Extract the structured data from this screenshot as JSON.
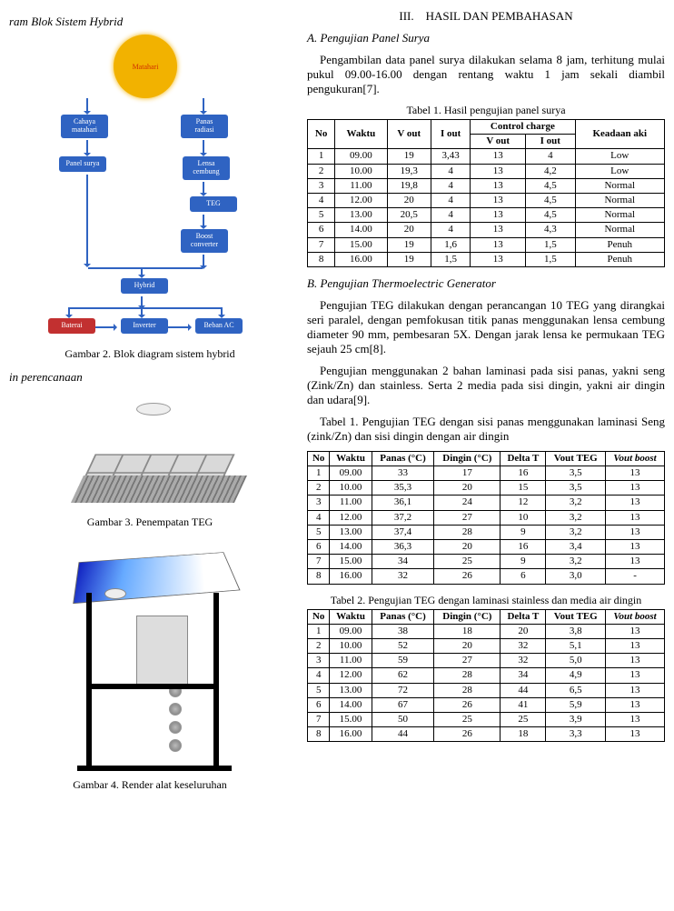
{
  "left": {
    "heading_blok": "ram Blok Sistem Hybrid",
    "fig2_caption": "Gambar 2.  Blok diagram sistem hybrid",
    "desain_heading": "in perencanaan",
    "fig3_caption": "Gambar 3. Penempatan TEG",
    "fig4_caption": "Gambar 4.  Render alat keseluruhan",
    "diagram": {
      "sun": "Matahari",
      "cahaya": "Cahaya\nmatahari",
      "panas": "Panas\nradiasi",
      "panel": "Panel surya",
      "lensa": "Lensa\ncembung",
      "teg": "TEG",
      "boost": "Boost\nconverter",
      "hybrid": "Hybrid",
      "baterai": "Baterai",
      "inverter": "Inverter",
      "beban": "Beban AC"
    }
  },
  "right": {
    "section_num": "III.",
    "section_title": "HASIL DAN PEMBAHASAN",
    "subA": "A.  Pengujian Panel Surya",
    "paraA": "Pengambilan data panel surya dilakukan selama 8 jam, terhitung mulai pukul 09.00-16.00 dengan rentang waktu 1 jam sekali diambil pengukuran[7].",
    "t1_caption": "Tabel 1. Hasil pengujian panel surya",
    "t1_headers": {
      "no": "No",
      "waktu": "Waktu",
      "vout": "V out",
      "iout": "I out",
      "cc": "Control charge",
      "cc_v": "V out",
      "cc_i": "I out",
      "keadaan": "Keadaan aki"
    },
    "t1_rows": [
      [
        "1",
        "09.00",
        "19",
        "3,43",
        "13",
        "4",
        "Low"
      ],
      [
        "2",
        "10.00",
        "19,3",
        "4",
        "13",
        "4,2",
        "Low"
      ],
      [
        "3",
        "11.00",
        "19,8",
        "4",
        "13",
        "4,5",
        "Normal"
      ],
      [
        "4",
        "12.00",
        "20",
        "4",
        "13",
        "4,5",
        "Normal"
      ],
      [
        "5",
        "13.00",
        "20,5",
        "4",
        "13",
        "4,5",
        "Normal"
      ],
      [
        "6",
        "14.00",
        "20",
        "4",
        "13",
        "4,3",
        "Normal"
      ],
      [
        "7",
        "15.00",
        "19",
        "1,6",
        "13",
        "1,5",
        "Penuh"
      ],
      [
        "8",
        "16.00",
        "19",
        "1,5",
        "13",
        "1,5",
        "Penuh"
      ]
    ],
    "subB": "B.  Pengujian Thermoelectric Generator",
    "paraB1": "Pengujian TEG dilakukan dengan perancangan 10 TEG yang dirangkai seri paralel, dengan pemfokusan titik panas menggunakan lensa cembung diameter 90 mm, pembesaran 5X. Dengan jarak lensa ke permukaan TEG sejauh 25 cm[8].",
    "paraB2": "Pengujian menggunakan 2 bahan laminasi pada sisi panas, yakni seng (Zink/Zn) dan stainless. Serta 2 media pada sisi dingin, yakni air dingin dan udara[9].",
    "t2_caption": "Tabel 1.  Pengujian TEG dengan sisi panas menggunakan laminasi Seng (zink/Zn) dan sisi dingin dengan air dingin",
    "teg_headers": {
      "no": "No",
      "waktu": "Waktu",
      "panas": "Panas (°C)",
      "dingin": "Dingin (°C)",
      "delta": "Delta T",
      "vteg": "Vout TEG",
      "vboost": "Vout boost"
    },
    "t2_rows": [
      [
        "1",
        "09.00",
        "33",
        "17",
        "16",
        "3,5",
        "13"
      ],
      [
        "2",
        "10.00",
        "35,3",
        "20",
        "15",
        "3,5",
        "13"
      ],
      [
        "3",
        "11.00",
        "36,1",
        "24",
        "12",
        "3,2",
        "13"
      ],
      [
        "4",
        "12.00",
        "37,2",
        "27",
        "10",
        "3,2",
        "13"
      ],
      [
        "5",
        "13.00",
        "37,4",
        "28",
        "9",
        "3,2",
        "13"
      ],
      [
        "6",
        "14.00",
        "36,3",
        "20",
        "16",
        "3,4",
        "13"
      ],
      [
        "7",
        "15.00",
        "34",
        "25",
        "9",
        "3,2",
        "13"
      ],
      [
        "8",
        "16.00",
        "32",
        "26",
        "6",
        "3,0",
        "-"
      ]
    ],
    "t3_caption": "Tabel 2. Pengujian TEG dengan laminasi stainless dan media air dingin",
    "t3_rows": [
      [
        "1",
        "09.00",
        "38",
        "18",
        "20",
        "3,8",
        "13"
      ],
      [
        "2",
        "10.00",
        "52",
        "20",
        "32",
        "5,1",
        "13"
      ],
      [
        "3",
        "11.00",
        "59",
        "27",
        "32",
        "5,0",
        "13"
      ],
      [
        "4",
        "12.00",
        "62",
        "28",
        "34",
        "4,9",
        "13"
      ],
      [
        "5",
        "13.00",
        "72",
        "28",
        "44",
        "6,5",
        "13"
      ],
      [
        "6",
        "14.00",
        "67",
        "26",
        "41",
        "5,9",
        "13"
      ],
      [
        "7",
        "15.00",
        "50",
        "25",
        "25",
        "3,9",
        "13"
      ],
      [
        "8",
        "16.00",
        "44",
        "26",
        "18",
        "3,3",
        "13"
      ]
    ]
  }
}
